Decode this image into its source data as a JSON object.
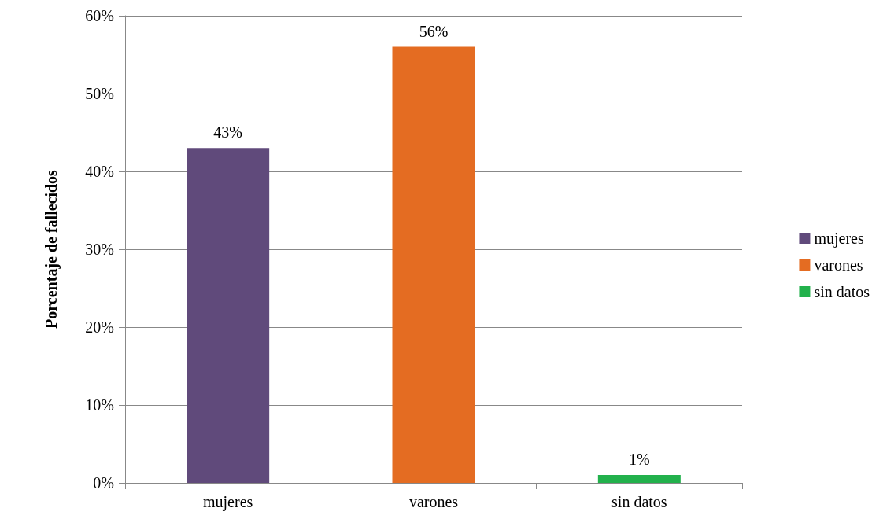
{
  "chart_data": {
    "type": "bar",
    "ylabel": "Porcentaje de fallecidos",
    "categories": [
      "mujeres",
      "varones",
      "sin datos"
    ],
    "series": [
      {
        "name": "mujeres",
        "color": "#604a7b",
        "values": [
          43,
          null,
          null
        ],
        "value_labels": [
          "43%",
          null,
          null
        ]
      },
      {
        "name": "varones",
        "color": "#e46c22",
        "values": [
          null,
          56,
          null
        ],
        "value_labels": [
          null,
          "56%",
          null
        ]
      },
      {
        "name": "sin datos",
        "color": "#22b14c",
        "values": [
          null,
          null,
          1
        ],
        "value_labels": [
          null,
          null,
          "1%"
        ]
      }
    ],
    "ylim": [
      0,
      60
    ],
    "yticks": [
      {
        "value": 0,
        "label": "0%"
      },
      {
        "value": 10,
        "label": "10%"
      },
      {
        "value": 20,
        "label": "20%"
      },
      {
        "value": 30,
        "label": "30%"
      },
      {
        "value": 40,
        "label": "40%"
      },
      {
        "value": 50,
        "label": "50%"
      },
      {
        "value": 60,
        "label": "60%"
      }
    ],
    "grid": "y",
    "legend": "right"
  }
}
